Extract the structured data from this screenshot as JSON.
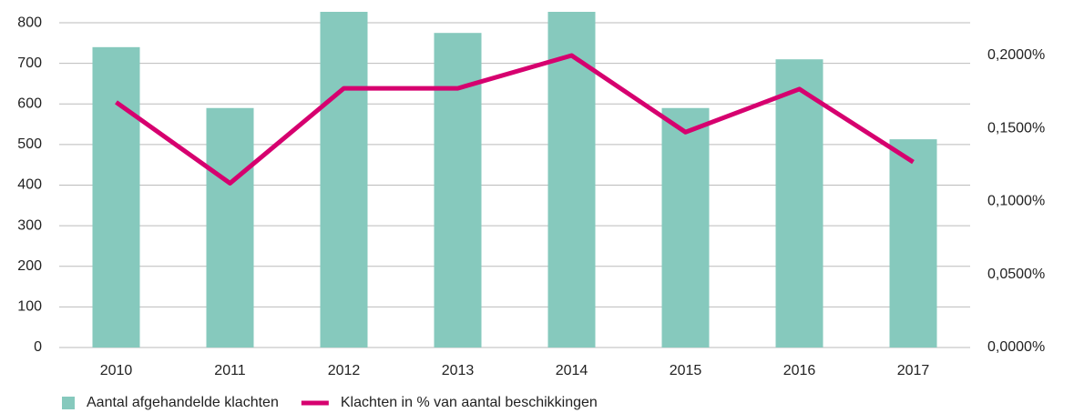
{
  "chart_data": {
    "type": "bar_line",
    "categories": [
      "2010",
      "2011",
      "2012",
      "2013",
      "2014",
      "2015",
      "2016",
      "2017"
    ],
    "series": [
      {
        "name": "Aantal afgehandelde klachten",
        "color": "#86c9bd",
        "type": "bar",
        "values": [
          740,
          590,
          827,
          775,
          827,
          590,
          710,
          513
        ]
      },
      {
        "name": "Klachten in % van aantal beschikkingen",
        "color": "#d6006f",
        "type": "line",
        "axis": "y2",
        "values": [
          0.168,
          0.1125,
          0.1775,
          0.1775,
          0.2,
          0.1475,
          0.177,
          0.127
        ]
      }
    ],
    "ylim": [
      0,
      827
    ],
    "yticks": [
      0,
      100,
      200,
      300,
      400,
      500,
      600,
      700,
      800
    ],
    "y2lim": [
      0,
      0.2299
    ],
    "y2ticks": [
      {
        "value": 0,
        "label": "0,0000%"
      },
      {
        "value": 0.05,
        "label": "0,0500%"
      },
      {
        "value": 0.1,
        "label": "0,1000%"
      },
      {
        "value": 0.15,
        "label": "0,1500%"
      },
      {
        "value": 0.2,
        "label": "0,2000%"
      }
    ],
    "grid": true,
    "legend": "bottom-left"
  }
}
